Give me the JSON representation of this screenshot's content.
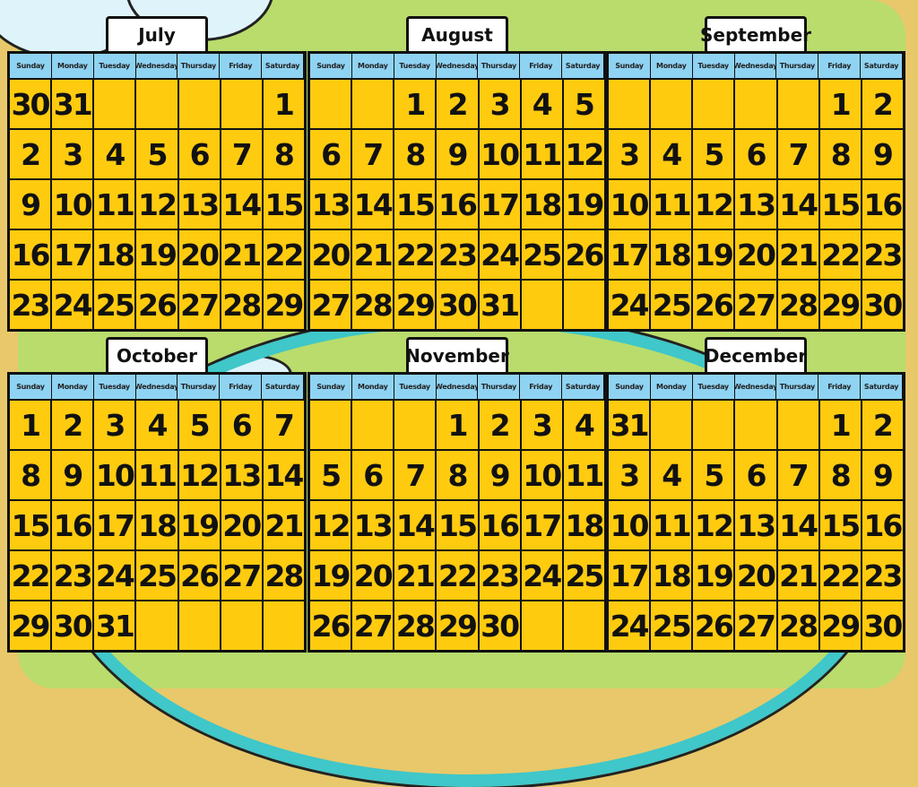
{
  "weekdays": [
    "Sunday",
    "Monday",
    "Tuesday",
    "Wednesday",
    "Thursday",
    "Friday",
    "Saturday"
  ],
  "colors": {
    "cell": "#ffcb0f",
    "header": "#8fd3f3",
    "background": "#b9dc6c"
  },
  "months": [
    {
      "title": "July",
      "weeks": [
        [
          "30",
          "31",
          "",
          "",
          "",
          "",
          "1"
        ],
        [
          "2",
          "3",
          "4",
          "5",
          "6",
          "7",
          "8"
        ],
        [
          "9",
          "10",
          "11",
          "12",
          "13",
          "14",
          "15"
        ],
        [
          "16",
          "17",
          "18",
          "19",
          "20",
          "21",
          "22"
        ],
        [
          "23",
          "24",
          "25",
          "26",
          "27",
          "28",
          "29"
        ]
      ]
    },
    {
      "title": "August",
      "weeks": [
        [
          "",
          "",
          "1",
          "2",
          "3",
          "4",
          "5"
        ],
        [
          "6",
          "7",
          "8",
          "9",
          "10",
          "11",
          "12"
        ],
        [
          "13",
          "14",
          "15",
          "16",
          "17",
          "18",
          "19"
        ],
        [
          "20",
          "21",
          "22",
          "23",
          "24",
          "25",
          "26"
        ],
        [
          "27",
          "28",
          "29",
          "30",
          "31",
          "",
          ""
        ]
      ]
    },
    {
      "title": "September",
      "weeks": [
        [
          "",
          "",
          "",
          "",
          "",
          "1",
          "2"
        ],
        [
          "3",
          "4",
          "5",
          "6",
          "7",
          "8",
          "9"
        ],
        [
          "10",
          "11",
          "12",
          "13",
          "14",
          "15",
          "16"
        ],
        [
          "17",
          "18",
          "19",
          "20",
          "21",
          "22",
          "23"
        ],
        [
          "24",
          "25",
          "26",
          "27",
          "28",
          "29",
          "30"
        ]
      ]
    },
    {
      "title": "October",
      "weeks": [
        [
          "1",
          "2",
          "3",
          "4",
          "5",
          "6",
          "7"
        ],
        [
          "8",
          "9",
          "10",
          "11",
          "12",
          "13",
          "14"
        ],
        [
          "15",
          "16",
          "17",
          "18",
          "19",
          "20",
          "21"
        ],
        [
          "22",
          "23",
          "24",
          "25",
          "26",
          "27",
          "28"
        ],
        [
          "29",
          "30",
          "31",
          "",
          "",
          "",
          ""
        ]
      ]
    },
    {
      "title": "November",
      "weeks": [
        [
          "",
          "",
          "",
          "1",
          "2",
          "3",
          "4"
        ],
        [
          "5",
          "6",
          "7",
          "8",
          "9",
          "10",
          "11"
        ],
        [
          "12",
          "13",
          "14",
          "15",
          "16",
          "17",
          "18"
        ],
        [
          "19",
          "20",
          "21",
          "22",
          "23",
          "24",
          "25"
        ],
        [
          "26",
          "27",
          "28",
          "29",
          "30",
          "",
          ""
        ]
      ]
    },
    {
      "title": "December",
      "weeks": [
        [
          "31",
          "",
          "",
          "",
          "",
          "1",
          "2"
        ],
        [
          "3",
          "4",
          "5",
          "6",
          "7",
          "8",
          "9"
        ],
        [
          "10",
          "11",
          "12",
          "13",
          "14",
          "15",
          "16"
        ],
        [
          "17",
          "18",
          "19",
          "20",
          "21",
          "22",
          "23"
        ],
        [
          "24",
          "25",
          "26",
          "27",
          "28",
          "29",
          "30"
        ]
      ]
    }
  ]
}
